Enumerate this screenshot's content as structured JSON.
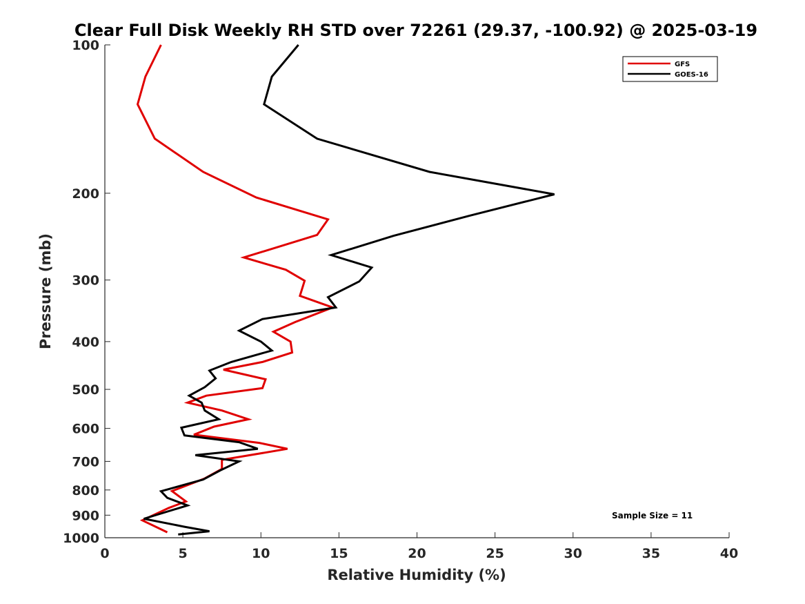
{
  "chart_data": {
    "type": "line",
    "title": "Clear Full Disk Weekly RH STD over 72261 (29.37, -100.92) @ 2025-03-19",
    "xlabel": "Relative Humidity (%)",
    "ylabel": "Pressure (mb)",
    "xlim": [
      0,
      40
    ],
    "ylim": [
      100,
      1000
    ],
    "yscale": "log",
    "y_reversed": true,
    "xticks": [
      0,
      5,
      10,
      15,
      20,
      25,
      30,
      35,
      40
    ],
    "yticks": [
      100,
      200,
      300,
      400,
      500,
      600,
      700,
      800,
      900,
      1000
    ],
    "grid": false,
    "legend_location": "top-right",
    "annotation": "Sample Size = 11",
    "series": [
      {
        "name": "GFS",
        "color": "#e00000",
        "x": [
          3.6,
          2.6,
          2.1,
          3.2,
          6.3,
          9.7,
          14.3,
          13.6,
          8.9,
          11.6,
          12.8,
          12.5,
          14.6,
          12.2,
          10.8,
          11.9,
          12.0,
          10.1,
          7.6,
          10.3,
          10.1,
          6.5,
          5.3,
          7.5,
          9.2,
          7.0,
          5.7,
          9.9,
          11.7,
          7.5,
          7.5,
          6.4,
          4.3,
          5.2,
          4.1,
          2.4,
          4.0
        ],
        "y": [
          100,
          116,
          132,
          155,
          181,
          204,
          226,
          243,
          270,
          286,
          301,
          323,
          341,
          365,
          382,
          400,
          421,
          440,
          456,
          477,
          497,
          515,
          532,
          552,
          575,
          595,
          618,
          642,
          660,
          695,
          725,
          758,
          804,
          844,
          870,
          922,
          975
        ]
      },
      {
        "name": "GOES-16",
        "color": "#000000",
        "x": [
          12.4,
          10.7,
          10.2,
          13.6,
          20.8,
          28.8,
          23.4,
          18.5,
          14.5,
          17.1,
          16.3,
          14.3,
          14.8,
          10.1,
          8.6,
          10.0,
          10.7,
          8.1,
          6.7,
          7.1,
          6.4,
          5.4,
          6.2,
          6.4,
          7.3,
          4.9,
          5.1,
          8.6,
          9.8,
          5.8,
          8.6,
          7.4,
          6.3,
          3.6,
          4.0,
          5.3,
          2.5,
          5.1,
          6.7,
          4.7
        ],
        "y": [
          100,
          116,
          132,
          155,
          181,
          201,
          222,
          244,
          267,
          283,
          302,
          325,
          341,
          360,
          380,
          400,
          417,
          440,
          458,
          475,
          495,
          515,
          532,
          552,
          575,
          598,
          620,
          640,
          660,
          680,
          700,
          730,
          762,
          805,
          830,
          860,
          915,
          950,
          970,
          985
        ]
      }
    ]
  }
}
